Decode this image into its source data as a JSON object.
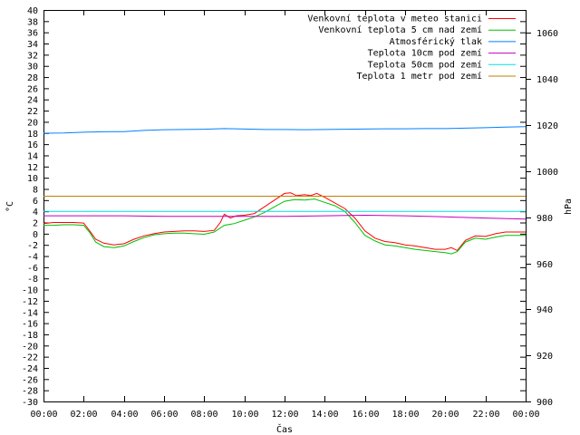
{
  "chart_data": {
    "type": "line",
    "xlabel": "Čas",
    "ylabel_left": "°C",
    "ylabel_right": "hPa",
    "x_ticks": [
      "00:00",
      "02:00",
      "04:00",
      "06:00",
      "08:00",
      "10:00",
      "12:00",
      "14:00",
      "16:00",
      "18:00",
      "20:00",
      "22:00",
      "00:00"
    ],
    "ylim_left": [
      -30,
      40
    ],
    "ylim_right": [
      900,
      1070
    ],
    "y_ticks_left": [
      40,
      38,
      36,
      34,
      32,
      30,
      28,
      26,
      24,
      22,
      20,
      18,
      16,
      14,
      12,
      10,
      8,
      6,
      4,
      2,
      0,
      -2,
      -4,
      -6,
      -8,
      -10,
      -12,
      -14,
      -16,
      -18,
      -20,
      -22,
      -24,
      -26,
      -28,
      -30
    ],
    "y_ticks_right": [
      1060,
      1040,
      1020,
      1000,
      980,
      960,
      940,
      920,
      900
    ],
    "grid": false,
    "legend_position": "top-right",
    "colors": {
      "venkovni": "#ff0000",
      "pet_cm": "#00c000",
      "tlak": "#0080ff",
      "deset_cm": "#c000c0",
      "padesat_cm": "#00e0e0",
      "metr": "#c08000"
    },
    "series": [
      {
        "name": "Venkovní teplota v meteo stanici",
        "color": "venkovni",
        "axis": "left",
        "x": [
          0,
          0.5,
          1,
          1.5,
          2,
          2.3,
          2.6,
          3,
          3.5,
          4,
          4.5,
          5,
          5.5,
          6,
          6.5,
          7,
          7.5,
          8,
          8.5,
          8.8,
          9,
          9.3,
          9.6,
          10,
          10.5,
          11,
          11.5,
          12,
          12.3,
          12.6,
          13,
          13.3,
          13.6,
          14,
          14.5,
          15,
          15.5,
          16,
          16.5,
          17,
          17.5,
          18,
          18.5,
          19,
          19.5,
          20,
          20.3,
          20.6,
          21,
          21.5,
          22,
          22.5,
          23,
          23.5,
          24
        ],
        "values": [
          1.8,
          2.0,
          2.0,
          2.0,
          1.9,
          0.5,
          -1.0,
          -1.7,
          -2.0,
          -1.8,
          -1.0,
          -0.4,
          0.0,
          0.3,
          0.4,
          0.5,
          0.5,
          0.4,
          0.6,
          2.0,
          3.5,
          2.8,
          3.2,
          3.3,
          3.6,
          4.8,
          6.0,
          7.2,
          7.3,
          6.8,
          7.0,
          6.8,
          7.2,
          6.5,
          5.5,
          4.5,
          2.8,
          0.5,
          -0.8,
          -1.4,
          -1.6,
          -2.0,
          -2.2,
          -2.5,
          -2.8,
          -2.8,
          -2.5,
          -3.0,
          -1.2,
          -0.4,
          -0.5,
          0.0,
          0.3,
          0.3,
          0.3
        ]
      },
      {
        "name": "Venkovní teplota 5 cm nad zemí",
        "color": "pet_cm",
        "axis": "left",
        "x": [
          0,
          0.5,
          1,
          1.5,
          2,
          2.3,
          2.6,
          3,
          3.5,
          4,
          4.5,
          5,
          5.5,
          6,
          6.5,
          7,
          7.5,
          8,
          8.5,
          9,
          9.5,
          10,
          10.5,
          11,
          11.5,
          12,
          12.5,
          13,
          13.5,
          14,
          14.5,
          15,
          15.5,
          16,
          16.5,
          17,
          17.5,
          18,
          18.5,
          19,
          19.5,
          20,
          20.3,
          20.6,
          21,
          21.5,
          22,
          22.5,
          23,
          23.5,
          24
        ],
        "values": [
          1.5,
          1.5,
          1.6,
          1.6,
          1.5,
          0.2,
          -1.5,
          -2.3,
          -2.5,
          -2.2,
          -1.4,
          -0.7,
          -0.2,
          0.0,
          0.1,
          0.1,
          0.0,
          -0.1,
          0.3,
          1.5,
          1.8,
          2.4,
          3.0,
          3.8,
          4.8,
          5.8,
          6.1,
          6.0,
          6.2,
          5.6,
          5.0,
          4.0,
          2.0,
          -0.3,
          -1.3,
          -2.0,
          -2.2,
          -2.5,
          -2.8,
          -3.0,
          -3.2,
          -3.4,
          -3.6,
          -3.2,
          -1.5,
          -0.8,
          -1.0,
          -0.6,
          -0.3,
          -0.3,
          -0.3
        ]
      },
      {
        "name": "Atmosférický tlak",
        "color": "tlak",
        "axis": "right",
        "x": [
          0,
          1,
          2,
          3,
          4,
          5,
          6,
          7,
          8,
          9,
          10,
          11,
          12,
          13,
          14,
          15,
          16,
          17,
          18,
          19,
          20,
          21,
          22,
          23,
          24
        ],
        "values": [
          1016.5,
          1016.6,
          1016.9,
          1017.1,
          1017.2,
          1017.7,
          1018.0,
          1018.1,
          1018.2,
          1018.5,
          1018.3,
          1018.1,
          1018.1,
          1018.0,
          1018.1,
          1018.2,
          1018.3,
          1018.4,
          1018.4,
          1018.5,
          1018.5,
          1018.7,
          1018.9,
          1019.1,
          1019.3
        ]
      },
      {
        "name": "Teplota 10cm pod zemí",
        "color": "deset_cm",
        "axis": "left",
        "x": [
          0,
          2,
          4,
          6,
          8,
          10,
          12,
          14,
          16,
          18,
          20,
          22,
          24
        ],
        "values": [
          3.2,
          3.2,
          3.2,
          3.1,
          3.1,
          3.1,
          3.1,
          3.2,
          3.3,
          3.2,
          3.0,
          2.8,
          2.6
        ]
      },
      {
        "name": "Teplota 50cm pod zemí",
        "color": "padesat_cm",
        "axis": "left",
        "x": [
          0,
          24
        ],
        "values": [
          4.0,
          4.0
        ]
      },
      {
        "name": "Teplota 1 metr pod zemí",
        "color": "metr",
        "axis": "left",
        "x": [
          0,
          24
        ],
        "values": [
          6.7,
          6.7
        ]
      }
    ]
  }
}
